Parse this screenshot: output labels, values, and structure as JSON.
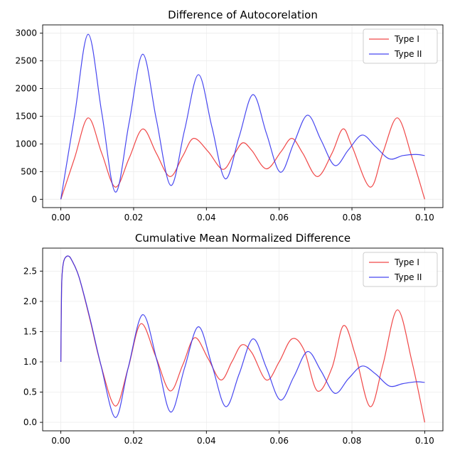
{
  "chart_data": [
    {
      "type": "line",
      "title": "Difference of Autocorelation",
      "xlabel": "",
      "ylabel": "",
      "xlim": [
        -0.005,
        0.105
      ],
      "ylim": [
        -150,
        3150
      ],
      "xticks": [
        0.0,
        0.02,
        0.04,
        0.06,
        0.08,
        0.1
      ],
      "xtick_labels": [
        "0.00",
        "0.02",
        "0.04",
        "0.06",
        "0.08",
        "0.10"
      ],
      "yticks": [
        0,
        500,
        1000,
        1500,
        2000,
        2500,
        3000
      ],
      "ytick_labels": [
        "0",
        "500",
        "1000",
        "1500",
        "2000",
        "2500",
        "3000"
      ],
      "grid": true,
      "legend_position": "upper right",
      "series": [
        {
          "name": "Type I",
          "color": "#ee3333",
          "x": [
            0.0,
            0.00375,
            0.0075,
            0.01125,
            0.015,
            0.01875,
            0.0225,
            0.02625,
            0.03,
            0.0335,
            0.0365,
            0.0405,
            0.0445,
            0.0475,
            0.05,
            0.0525,
            0.0565,
            0.0605,
            0.0635,
            0.0665,
            0.0705,
            0.0745,
            0.0775,
            0.08,
            0.085,
            0.0885,
            0.0925,
            0.0965,
            0.1
          ],
          "y": [
            0,
            740,
            1470,
            830,
            220,
            740,
            1270,
            830,
            410,
            780,
            1100,
            860,
            540,
            800,
            1020,
            880,
            550,
            860,
            1100,
            830,
            410,
            830,
            1270,
            960,
            220,
            840,
            1470,
            760,
            0
          ]
        },
        {
          "name": "Type II",
          "color": "#3333ee",
          "x": [
            0.0,
            0.00375,
            0.0075,
            0.01125,
            0.015,
            0.01875,
            0.0225,
            0.02625,
            0.0302,
            0.034,
            0.0378,
            0.0415,
            0.0452,
            0.049,
            0.0528,
            0.0565,
            0.0603,
            0.064,
            0.0678,
            0.0715,
            0.0753,
            0.079,
            0.0828,
            0.0865,
            0.0903,
            0.094,
            0.0975,
            0.1
          ],
          "y": [
            0,
            1500,
            2980,
            1560,
            130,
            1380,
            2620,
            1440,
            250,
            1250,
            2250,
            1310,
            370,
            1130,
            1890,
            1190,
            490,
            1010,
            1520,
            1070,
            610,
            890,
            1160,
            950,
            730,
            790,
            810,
            790
          ]
        }
      ]
    },
    {
      "type": "line",
      "title": "Cumulative Mean Normalized Difference",
      "xlabel": "",
      "ylabel": "",
      "xlim": [
        -0.005,
        0.105
      ],
      "ylim": [
        -0.14,
        2.88
      ],
      "xticks": [
        0.0,
        0.02,
        0.04,
        0.06,
        0.08,
        0.1
      ],
      "xtick_labels": [
        "0.00",
        "0.02",
        "0.04",
        "0.06",
        "0.08",
        "0.10"
      ],
      "yticks": [
        0.0,
        0.5,
        1.0,
        1.5,
        2.0,
        2.5
      ],
      "ytick_labels": [
        "0.0",
        "0.5",
        "1.0",
        "1.5",
        "2.0",
        "2.5"
      ],
      "grid": true,
      "legend_position": "upper right",
      "series": [
        {
          "name": "Type I",
          "color": "#ee3333",
          "x": [
            0.0,
            0.0002,
            0.0005,
            0.001,
            0.002,
            0.003,
            0.005,
            0.008,
            0.011,
            0.015,
            0.0185,
            0.022,
            0.026,
            0.03,
            0.0335,
            0.0368,
            0.0405,
            0.044,
            0.047,
            0.0497,
            0.0525,
            0.0565,
            0.06,
            0.0635,
            0.0668,
            0.0705,
            0.0745,
            0.0777,
            0.081,
            0.085,
            0.0885,
            0.0925,
            0.0965,
            0.1
          ],
          "y": [
            1.0,
            2.2,
            2.55,
            2.7,
            2.75,
            2.68,
            2.4,
            1.7,
            0.95,
            0.27,
            0.9,
            1.63,
            1.1,
            0.52,
            0.95,
            1.4,
            1.05,
            0.7,
            1.0,
            1.28,
            1.15,
            0.7,
            1.0,
            1.38,
            1.2,
            0.52,
            0.9,
            1.6,
            1.1,
            0.26,
            0.95,
            1.86,
            1.0,
            0.0
          ]
        },
        {
          "name": "Type II",
          "color": "#3333ee",
          "x": [
            0.0,
            0.0002,
            0.0005,
            0.001,
            0.002,
            0.003,
            0.005,
            0.008,
            0.011,
            0.015,
            0.0185,
            0.0225,
            0.0265,
            0.0302,
            0.034,
            0.0378,
            0.0415,
            0.0453,
            0.049,
            0.0528,
            0.0565,
            0.0603,
            0.064,
            0.0678,
            0.0715,
            0.0753,
            0.079,
            0.0828,
            0.0865,
            0.0903,
            0.094,
            0.0975,
            0.1
          ],
          "y": [
            1.0,
            2.2,
            2.55,
            2.7,
            2.75,
            2.68,
            2.4,
            1.72,
            0.95,
            0.08,
            0.9,
            1.78,
            1.0,
            0.17,
            0.9,
            1.58,
            0.95,
            0.26,
            0.8,
            1.38,
            0.9,
            0.37,
            0.75,
            1.17,
            0.85,
            0.48,
            0.72,
            0.93,
            0.8,
            0.6,
            0.64,
            0.67,
            0.66
          ]
        }
      ]
    }
  ]
}
